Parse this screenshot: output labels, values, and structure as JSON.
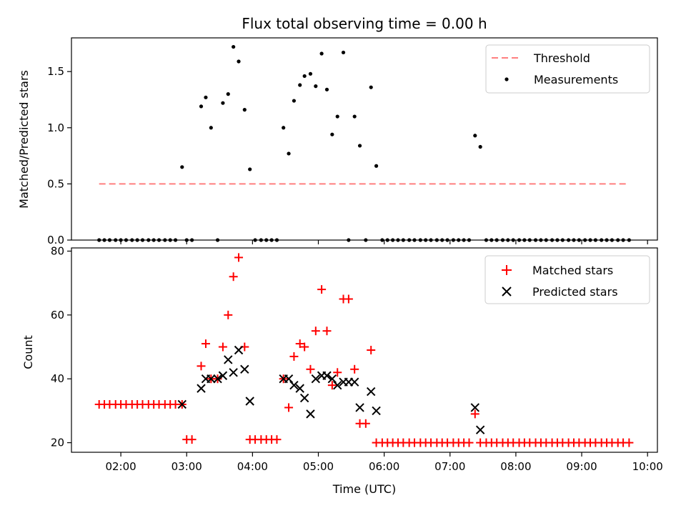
{
  "figure": {
    "title": "Flux total observing time = 0.00 h",
    "xlabel": "Time (UTC)"
  },
  "chart_data": [
    {
      "type": "scatter",
      "title": "Flux total observing time = 0.00 h",
      "ylabel": "Matched/Predicted stars",
      "xlabel": "",
      "ylim": [
        0,
        1.8
      ],
      "yticks": [
        "0.0",
        "0.5",
        "1.0",
        "1.5"
      ],
      "ytick_values": [
        0,
        0.5,
        1.0,
        1.5
      ],
      "legend_position": "top-right",
      "threshold": {
        "name": "Threshold",
        "y": 0.5,
        "x_start": 1.67,
        "x_end": 9.72,
        "color": "#ff7f7f"
      },
      "series": [
        {
          "name": "Measurements",
          "color": "#000000",
          "marker": "dot",
          "x": [
            1.67,
            1.75,
            1.83,
            1.92,
            2.0,
            2.08,
            2.17,
            2.25,
            2.33,
            2.42,
            2.5,
            2.58,
            2.67,
            2.75,
            2.83,
            2.93,
            3.0,
            3.08,
            3.22,
            3.29,
            3.37,
            3.47,
            3.55,
            3.63,
            3.71,
            3.79,
            3.88,
            3.96,
            4.04,
            4.13,
            4.21,
            4.29,
            4.37,
            4.47,
            4.55,
            4.63,
            4.72,
            4.79,
            4.88,
            4.96,
            5.05,
            5.13,
            5.21,
            5.29,
            5.38,
            5.46,
            5.55,
            5.63,
            5.72,
            5.8,
            5.88,
            5.97,
            6.05,
            6.13,
            6.21,
            6.29,
            6.38,
            6.46,
            6.55,
            6.63,
            6.71,
            6.8,
            6.88,
            6.96,
            7.05,
            7.13,
            7.21,
            7.29,
            7.38,
            7.46,
            7.55,
            7.63,
            7.71,
            7.8,
            7.88,
            7.96,
            8.05,
            8.13,
            8.21,
            8.3,
            8.38,
            8.46,
            8.55,
            8.63,
            8.71,
            8.8,
            8.88,
            8.96,
            9.05,
            9.13,
            9.21,
            9.3,
            9.38,
            9.46,
            9.55,
            9.63,
            9.72
          ],
          "y": [
            0,
            0,
            0,
            0,
            0,
            0,
            0,
            0,
            0,
            0,
            0,
            0,
            0,
            0,
            0,
            0.65,
            0,
            0,
            1.19,
            1.27,
            1.0,
            0,
            1.22,
            1.3,
            1.72,
            1.59,
            1.16,
            0.63,
            0,
            0,
            0,
            0,
            0,
            1.0,
            0.77,
            1.24,
            1.38,
            1.46,
            1.48,
            1.37,
            1.66,
            1.34,
            0.94,
            1.1,
            1.67,
            0,
            1.1,
            0.84,
            0,
            1.36,
            0.66,
            0,
            0,
            0,
            0,
            0,
            0,
            0,
            0,
            0,
            0,
            0,
            0,
            0,
            0,
            0,
            0,
            0,
            0.93,
            0.83,
            0,
            0,
            0,
            0,
            0,
            0,
            0,
            0,
            0,
            0,
            0,
            0,
            0,
            0,
            0,
            0,
            0,
            0,
            0,
            0,
            0,
            0,
            0,
            0,
            0,
            0,
            0
          ]
        }
      ]
    },
    {
      "type": "scatter",
      "ylabel": "Count",
      "xlabel": "Time (UTC)",
      "ylim": [
        17,
        81
      ],
      "yticks": [
        "20",
        "40",
        "60",
        "80"
      ],
      "ytick_values": [
        20,
        40,
        60,
        80
      ],
      "xlim": [
        1.25,
        10.15
      ],
      "xticks": [
        "02:00",
        "03:00",
        "04:00",
        "05:00",
        "06:00",
        "07:00",
        "08:00",
        "09:00",
        "10:00"
      ],
      "xtick_values": [
        2,
        3,
        4,
        5,
        6,
        7,
        8,
        9,
        10
      ],
      "legend_position": "top-right",
      "series": [
        {
          "name": "Matched stars",
          "color": "#ff0000",
          "marker": "plus",
          "x": [
            1.67,
            1.75,
            1.83,
            1.92,
            2.0,
            2.08,
            2.17,
            2.25,
            2.33,
            2.42,
            2.5,
            2.58,
            2.67,
            2.75,
            2.83,
            2.93,
            3.0,
            3.08,
            3.22,
            3.29,
            3.37,
            3.47,
            3.55,
            3.63,
            3.71,
            3.79,
            3.88,
            3.96,
            4.04,
            4.13,
            4.21,
            4.29,
            4.37,
            4.47,
            4.55,
            4.63,
            4.72,
            4.79,
            4.88,
            4.96,
            5.05,
            5.13,
            5.21,
            5.29,
            5.38,
            5.46,
            5.55,
            5.63,
            5.72,
            5.8,
            5.88,
            5.97,
            6.05,
            6.13,
            6.21,
            6.29,
            6.38,
            6.46,
            6.55,
            6.63,
            6.71,
            6.8,
            6.88,
            6.96,
            7.05,
            7.13,
            7.21,
            7.29,
            7.38,
            7.46,
            7.55,
            7.63,
            7.71,
            7.8,
            7.88,
            7.96,
            8.05,
            8.13,
            8.21,
            8.3,
            8.38,
            8.46,
            8.55,
            8.63,
            8.71,
            8.8,
            8.88,
            8.96,
            9.05,
            9.13,
            9.21,
            9.3,
            9.38,
            9.46,
            9.55,
            9.63,
            9.72
          ],
          "y": [
            32,
            32,
            32,
            32,
            32,
            32,
            32,
            32,
            32,
            32,
            32,
            32,
            32,
            32,
            32,
            32,
            21,
            21,
            44,
            51,
            40,
            40,
            50,
            60,
            72,
            78,
            50,
            21,
            21,
            21,
            21,
            21,
            21,
            40,
            31,
            47,
            51,
            50,
            43,
            55,
            68,
            55,
            38,
            42,
            65,
            65,
            43,
            26,
            26,
            49,
            20,
            20,
            20,
            20,
            20,
            20,
            20,
            20,
            20,
            20,
            20,
            20,
            20,
            20,
            20,
            20,
            20,
            20,
            29,
            20,
            20,
            20,
            20,
            20,
            20,
            20,
            20,
            20,
            20,
            20,
            20,
            20,
            20,
            20,
            20,
            20,
            20,
            20,
            20,
            20,
            20,
            20,
            20,
            20,
            20,
            20,
            20
          ]
        },
        {
          "name": "Predicted stars",
          "color": "#000000",
          "marker": "x",
          "x": [
            2.93,
            3.22,
            3.29,
            3.37,
            3.47,
            3.55,
            3.63,
            3.71,
            3.79,
            3.88,
            3.96,
            4.47,
            4.55,
            4.63,
            4.72,
            4.79,
            4.88,
            4.96,
            5.05,
            5.13,
            5.21,
            5.29,
            5.38,
            5.46,
            5.55,
            5.63,
            5.8,
            5.88,
            7.38,
            7.46
          ],
          "y": [
            32,
            37,
            40,
            40,
            40,
            41,
            46,
            42,
            49,
            43,
            33,
            40,
            40,
            38,
            37,
            34,
            29,
            40,
            41,
            41,
            40,
            38,
            39,
            39,
            39,
            31,
            36,
            30,
            31,
            24
          ]
        }
      ]
    }
  ]
}
